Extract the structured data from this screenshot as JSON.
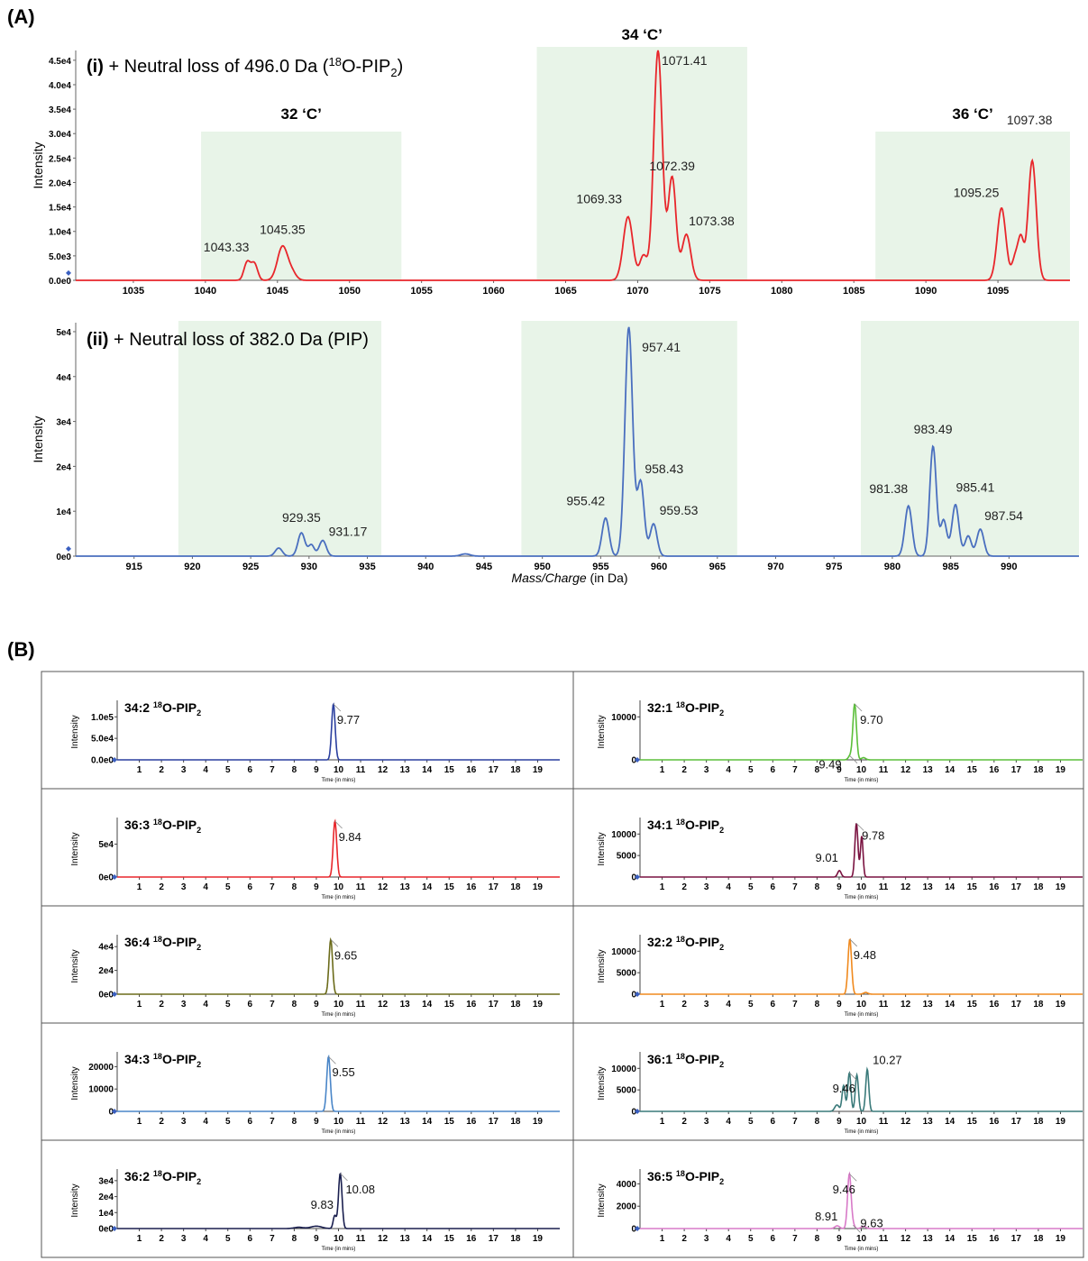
{
  "panel_a_label": "(A)",
  "panel_b_label": "(B)",
  "chart_data": [
    {
      "type": "line",
      "panel": "A-i",
      "title_prefix": "(i)",
      "title_text": "+ Neutral loss of 496.0 Da (",
      "title_sup": "18",
      "title_mid": "O-PIP",
      "title_sub": "2",
      "title_end": ")",
      "ylabel": "Intensity",
      "xlim": [
        1031,
        1100
      ],
      "ylim": [
        0,
        47000
      ],
      "yticks": [
        0,
        5000,
        10000,
        15000,
        20000,
        25000,
        30000,
        35000,
        40000,
        45000
      ],
      "ytick_labels": [
        "0.0e0",
        "5.0e3",
        "1.0e4",
        "1.5e4",
        "2.0e4",
        "2.5e4",
        "3.0e4",
        "3.5e4",
        "4.0e4",
        "4.5e4"
      ],
      "xticks": [
        1035,
        1040,
        1045,
        1050,
        1055,
        1060,
        1065,
        1070,
        1075,
        1080,
        1085,
        1090,
        1095
      ],
      "color": "#e8262b",
      "regions": [
        {
          "x0": 1039.7,
          "x1": 1053.6,
          "ymax": 30500,
          "label": "32 ‘C’"
        },
        {
          "x0": 1063.0,
          "x1": 1077.6,
          "ymax": 47000,
          "label": "34 ‘C’"
        },
        {
          "x0": 1086.5,
          "x1": 1100,
          "ymax": 30500,
          "label": "36 ‘C’"
        }
      ],
      "peaks": [
        {
          "x": 1042.9,
          "y": 3700,
          "w": 0.22
        },
        {
          "x": 1043.4,
          "y": 3400,
          "w": 0.22
        },
        {
          "x": 1045.35,
          "y": 6900,
          "w": 0.35
        },
        {
          "x": 1046.0,
          "y": 1500,
          "w": 0.3
        },
        {
          "x": 1069.33,
          "y": 13000,
          "w": 0.33
        },
        {
          "x": 1070.4,
          "y": 5000,
          "w": 0.25
        },
        {
          "x": 1071.41,
          "y": 47000,
          "w": 0.3
        },
        {
          "x": 1072.39,
          "y": 21000,
          "w": 0.27
        },
        {
          "x": 1073.38,
          "y": 9400,
          "w": 0.3
        },
        {
          "x": 1095.25,
          "y": 14800,
          "w": 0.3
        },
        {
          "x": 1096.2,
          "y": 4500,
          "w": 0.22
        },
        {
          "x": 1096.6,
          "y": 8000,
          "w": 0.2
        },
        {
          "x": 1097.38,
          "y": 24500,
          "w": 0.28
        }
      ],
      "peak_labels": [
        {
          "x": 1043.33,
          "y": 3700,
          "text": "1043.33"
        },
        {
          "x": 1045.35,
          "y": 6900,
          "text": "1045.35"
        },
        {
          "x": 1069.33,
          "y": 13000,
          "text": "1069.33"
        },
        {
          "x": 1071.41,
          "y": 47000,
          "text": "1071.41"
        },
        {
          "x": 1072.39,
          "y": 21000,
          "text": "1072.39"
        },
        {
          "x": 1073.38,
          "y": 9400,
          "text": "1073.38"
        },
        {
          "x": 1095.25,
          "y": 14800,
          "text": "1095.25"
        },
        {
          "x": 1097.38,
          "y": 24500,
          "text": "1097.38"
        }
      ]
    },
    {
      "type": "line",
      "panel": "A-ii",
      "title_prefix": "(ii)",
      "title_text": "+ Neutral loss of 382.0 Da (PIP)",
      "ylabel": "Intensity",
      "xlabel_italic": "Mass/Charge",
      "xlabel_rest": " (in Da)",
      "xlim": [
        910,
        996
      ],
      "ylim": [
        0,
        52000
      ],
      "yticks": [
        0,
        10000,
        20000,
        30000,
        40000,
        50000
      ],
      "ytick_labels": [
        "0e0",
        "1e4",
        "2e4",
        "3e4",
        "4e4",
        "5e4"
      ],
      "xticks": [
        915,
        920,
        925,
        930,
        935,
        940,
        945,
        950,
        955,
        960,
        965,
        970,
        975,
        980,
        985,
        990
      ],
      "color": "#4a6fbf",
      "regions": [
        {
          "x0": 918.8,
          "x1": 936.2,
          "ymax": 52000
        },
        {
          "x0": 948.2,
          "x1": 966.7,
          "ymax": 52000
        },
        {
          "x0": 977.3,
          "x1": 996,
          "ymax": 52000
        }
      ],
      "peaks": [
        {
          "x": 927.4,
          "y": 1800,
          "w": 0.3
        },
        {
          "x": 929.35,
          "y": 5200,
          "w": 0.3
        },
        {
          "x": 930.2,
          "y": 2500,
          "w": 0.25
        },
        {
          "x": 931.17,
          "y": 3500,
          "w": 0.3
        },
        {
          "x": 943.4,
          "y": 500,
          "w": 0.4
        },
        {
          "x": 955.42,
          "y": 8500,
          "w": 0.3
        },
        {
          "x": 957.41,
          "y": 51000,
          "w": 0.33
        },
        {
          "x": 958.43,
          "y": 16500,
          "w": 0.3
        },
        {
          "x": 959.53,
          "y": 7200,
          "w": 0.3
        },
        {
          "x": 981.38,
          "y": 11200,
          "w": 0.3
        },
        {
          "x": 983.49,
          "y": 24500,
          "w": 0.28
        },
        {
          "x": 984.4,
          "y": 8000,
          "w": 0.27
        },
        {
          "x": 985.41,
          "y": 11500,
          "w": 0.3
        },
        {
          "x": 986.5,
          "y": 4500,
          "w": 0.27
        },
        {
          "x": 987.54,
          "y": 6000,
          "w": 0.3
        }
      ],
      "peak_labels": [
        {
          "x": 929.35,
          "y": 5200,
          "text": "929.35"
        },
        {
          "x": 931.17,
          "y": 3500,
          "text": "931.17"
        },
        {
          "x": 955.42,
          "y": 8500,
          "text": "955.42"
        },
        {
          "x": 957.41,
          "y": 51000,
          "text": "957.41"
        },
        {
          "x": 958.43,
          "y": 16500,
          "text": "958.43"
        },
        {
          "x": 959.53,
          "y": 7200,
          "text": "959.53"
        },
        {
          "x": 981.38,
          "y": 11200,
          "text": "981.38"
        },
        {
          "x": 983.49,
          "y": 24500,
          "text": "983.49"
        },
        {
          "x": 985.41,
          "y": 11500,
          "text": "985.41"
        },
        {
          "x": 987.54,
          "y": 6000,
          "text": "987.54"
        }
      ]
    },
    {
      "type": "line",
      "panel": "B",
      "species": "34:2",
      "color": "#2a3f9f",
      "ylabel": "Intensity",
      "xlabel": "Time (in mins)",
      "xlim": [
        0,
        20
      ],
      "ylim": [
        0,
        130000
      ],
      "yticks": [
        0,
        50000,
        100000
      ],
      "ytick_labels": [
        "0.0e0",
        "5.0e4",
        "1.0e5"
      ],
      "xticks": [
        1,
        2,
        3,
        4,
        5,
        6,
        7,
        8,
        9,
        10,
        11,
        12,
        13,
        14,
        15,
        16,
        17,
        18,
        19
      ],
      "peaks": [
        {
          "x": 9.77,
          "y": 130000,
          "w": 0.08
        }
      ],
      "peak_labels": [
        {
          "x": 9.77,
          "y": 130000,
          "text": "9.77"
        }
      ]
    },
    {
      "type": "line",
      "panel": "B",
      "species": "32:1",
      "color": "#5bbf3a",
      "ylabel": "Intensity",
      "xlabel": "Time (in mins)",
      "xlim": [
        0,
        20
      ],
      "ylim": [
        0,
        13000
      ],
      "yticks": [
        0,
        10000
      ],
      "ytick_labels": [
        "0",
        "10000"
      ],
      "xticks": [
        1,
        2,
        3,
        4,
        5,
        6,
        7,
        8,
        9,
        10,
        11,
        12,
        13,
        14,
        15,
        16,
        17,
        18,
        19
      ],
      "peaks": [
        {
          "x": 9.49,
          "y": 900,
          "w": 0.08
        },
        {
          "x": 9.7,
          "y": 13000,
          "w": 0.08
        },
        {
          "x": 10.1,
          "y": 500,
          "w": 0.1
        }
      ],
      "peak_labels": [
        {
          "x": 9.49,
          "y": 900,
          "text": "9.49"
        },
        {
          "x": 9.7,
          "y": 13000,
          "text": "9.70"
        }
      ]
    },
    {
      "type": "line",
      "panel": "B",
      "species": "36:3",
      "color": "#e8262b",
      "ylabel": "Intensity",
      "xlabel": "Time (in mins)",
      "xlim": [
        0,
        20
      ],
      "ylim": [
        0,
        85000
      ],
      "yticks": [
        0,
        50000
      ],
      "ytick_labels": [
        "0e0",
        "5e4"
      ],
      "xticks": [
        1,
        2,
        3,
        4,
        5,
        6,
        7,
        8,
        9,
        10,
        11,
        12,
        13,
        14,
        15,
        16,
        17,
        18,
        19
      ],
      "peaks": [
        {
          "x": 9.84,
          "y": 85000,
          "w": 0.08
        }
      ],
      "peak_labels": [
        {
          "x": 9.84,
          "y": 85000,
          "text": "9.84"
        }
      ]
    },
    {
      "type": "line",
      "panel": "B",
      "species": "34:1",
      "color": "#7a1240",
      "ylabel": "Intensity",
      "xlabel": "Time (in mins)",
      "xlim": [
        0,
        20
      ],
      "ylim": [
        0,
        13000
      ],
      "yticks": [
        0,
        5000,
        10000
      ],
      "ytick_labels": [
        "0",
        "5000",
        "10000"
      ],
      "xticks": [
        1,
        2,
        3,
        4,
        5,
        6,
        7,
        8,
        9,
        10,
        11,
        12,
        13,
        14,
        15,
        16,
        17,
        18,
        19
      ],
      "peaks": [
        {
          "x": 9.01,
          "y": 1500,
          "w": 0.08
        },
        {
          "x": 9.78,
          "y": 12500,
          "w": 0.07
        },
        {
          "x": 10.02,
          "y": 9500,
          "w": 0.06
        }
      ],
      "peak_labels": [
        {
          "x": 9.01,
          "y": 1500,
          "text": "9.01"
        },
        {
          "x": 9.78,
          "y": 12500,
          "text": "9.78"
        }
      ]
    },
    {
      "type": "line",
      "panel": "B",
      "species": "36:4",
      "color": "#6b6b1a",
      "ylabel": "Intensity",
      "xlabel": "Time (in mins)",
      "xlim": [
        0,
        20
      ],
      "ylim": [
        0,
        47000
      ],
      "yticks": [
        0,
        20000,
        40000
      ],
      "ytick_labels": [
        "0e0",
        "2e4",
        "4e4"
      ],
      "xticks": [
        1,
        2,
        3,
        4,
        5,
        6,
        7,
        8,
        9,
        10,
        11,
        12,
        13,
        14,
        15,
        16,
        17,
        18,
        19
      ],
      "peaks": [
        {
          "x": 9.65,
          "y": 46000,
          "w": 0.08
        }
      ],
      "peak_labels": [
        {
          "x": 9.65,
          "y": 46000,
          "text": "9.65"
        }
      ]
    },
    {
      "type": "line",
      "panel": "B",
      "species": "32:2",
      "color": "#f08a1e",
      "ylabel": "Intensity",
      "xlabel": "Time (in mins)",
      "xlim": [
        0,
        20
      ],
      "ylim": [
        0,
        13000
      ],
      "yticks": [
        0,
        5000,
        10000
      ],
      "ytick_labels": [
        "0",
        "5000",
        "10000"
      ],
      "xticks": [
        1,
        2,
        3,
        4,
        5,
        6,
        7,
        8,
        9,
        10,
        11,
        12,
        13,
        14,
        15,
        16,
        17,
        18,
        19
      ],
      "peaks": [
        {
          "x": 9.48,
          "y": 12800,
          "w": 0.08
        },
        {
          "x": 10.2,
          "y": 400,
          "w": 0.1
        }
      ],
      "peak_labels": [
        {
          "x": 9.48,
          "y": 12800,
          "text": "9.48"
        }
      ]
    },
    {
      "type": "line",
      "panel": "B",
      "species": "34:3",
      "color": "#4a86c8",
      "ylabel": "Intensity",
      "xlabel": "Time (in mins)",
      "xlim": [
        0,
        20
      ],
      "ylim": [
        0,
        25000
      ],
      "yticks": [
        0,
        10000,
        20000
      ],
      "ytick_labels": [
        "0",
        "10000",
        "20000"
      ],
      "xticks": [
        1,
        2,
        3,
        4,
        5,
        6,
        7,
        8,
        9,
        10,
        11,
        12,
        13,
        14,
        15,
        16,
        17,
        18,
        19
      ],
      "peaks": [
        {
          "x": 9.55,
          "y": 24500,
          "w": 0.08
        }
      ],
      "peak_labels": [
        {
          "x": 9.55,
          "y": 24500,
          "text": "9.55"
        }
      ]
    },
    {
      "type": "line",
      "panel": "B",
      "species": "36:1",
      "color": "#3a7a7a",
      "ylabel": "Intensity",
      "xlabel": "Time (in mins)",
      "xlim": [
        0,
        20
      ],
      "ylim": [
        0,
        13000
      ],
      "yticks": [
        0,
        5000,
        10000
      ],
      "ytick_labels": [
        "0",
        "5000",
        "10000"
      ],
      "xticks": [
        1,
        2,
        3,
        4,
        5,
        6,
        7,
        8,
        9,
        10,
        11,
        12,
        13,
        14,
        15,
        16,
        17,
        18,
        19
      ],
      "peaks": [
        {
          "x": 8.9,
          "y": 1500,
          "w": 0.1
        },
        {
          "x": 9.2,
          "y": 6000,
          "w": 0.07
        },
        {
          "x": 9.46,
          "y": 9000,
          "w": 0.07
        },
        {
          "x": 9.8,
          "y": 8500,
          "w": 0.07
        },
        {
          "x": 10.27,
          "y": 9800,
          "w": 0.07
        }
      ],
      "peak_labels": [
        {
          "x": 9.46,
          "y": 9000,
          "text": "9.46"
        },
        {
          "x": 10.27,
          "y": 9800,
          "text": "10.27"
        }
      ]
    },
    {
      "type": "line",
      "panel": "B",
      "species": "36:2",
      "color": "#1a1f4f",
      "ylabel": "Intensity",
      "xlabel": "Time (in mins)",
      "xlim": [
        0,
        20
      ],
      "ylim": [
        0,
        35000
      ],
      "yticks": [
        0,
        10000,
        20000,
        30000
      ],
      "ytick_labels": [
        "0e0",
        "1e4",
        "2e4",
        "3e4"
      ],
      "xticks": [
        1,
        2,
        3,
        4,
        5,
        6,
        7,
        8,
        9,
        10,
        11,
        12,
        13,
        14,
        15,
        16,
        17,
        18,
        19
      ],
      "peaks": [
        {
          "x": 8.2,
          "y": 800,
          "w": 0.2
        },
        {
          "x": 9.0,
          "y": 1500,
          "w": 0.25
        },
        {
          "x": 9.83,
          "y": 8000,
          "w": 0.07
        },
        {
          "x": 10.08,
          "y": 34500,
          "w": 0.08
        }
      ],
      "peak_labels": [
        {
          "x": 9.83,
          "y": 8000,
          "text": "9.83"
        },
        {
          "x": 10.08,
          "y": 34500,
          "text": "10.08"
        }
      ]
    },
    {
      "type": "line",
      "panel": "B",
      "species": "36:5",
      "color": "#d87ac8",
      "ylabel": "Intensity",
      "xlabel": "Time (in mins)",
      "xlim": [
        0,
        20
      ],
      "ylim": [
        0,
        5000
      ],
      "yticks": [
        0,
        2000,
        4000
      ],
      "ytick_labels": [
        "0",
        "2000",
        "4000"
      ],
      "xticks": [
        1,
        2,
        3,
        4,
        5,
        6,
        7,
        8,
        9,
        10,
        11,
        12,
        13,
        14,
        15,
        16,
        17,
        18,
        19
      ],
      "peaks": [
        {
          "x": 8.91,
          "y": 250,
          "w": 0.1
        },
        {
          "x": 9.46,
          "y": 4900,
          "w": 0.08
        },
        {
          "x": 9.63,
          "y": 300,
          "w": 0.07
        },
        {
          "x": 10.1,
          "y": 200,
          "w": 0.1
        }
      ],
      "peak_labels": [
        {
          "x": 8.91,
          "y": 250,
          "text": "8.91"
        },
        {
          "x": 9.46,
          "y": 4900,
          "text": "9.46"
        },
        {
          "x": 9.63,
          "y": 300,
          "text": "9.63"
        }
      ]
    }
  ],
  "panel_b_label_sup": "18",
  "panel_b_label_mid": "O-PIP",
  "panel_b_label_sub": "2"
}
